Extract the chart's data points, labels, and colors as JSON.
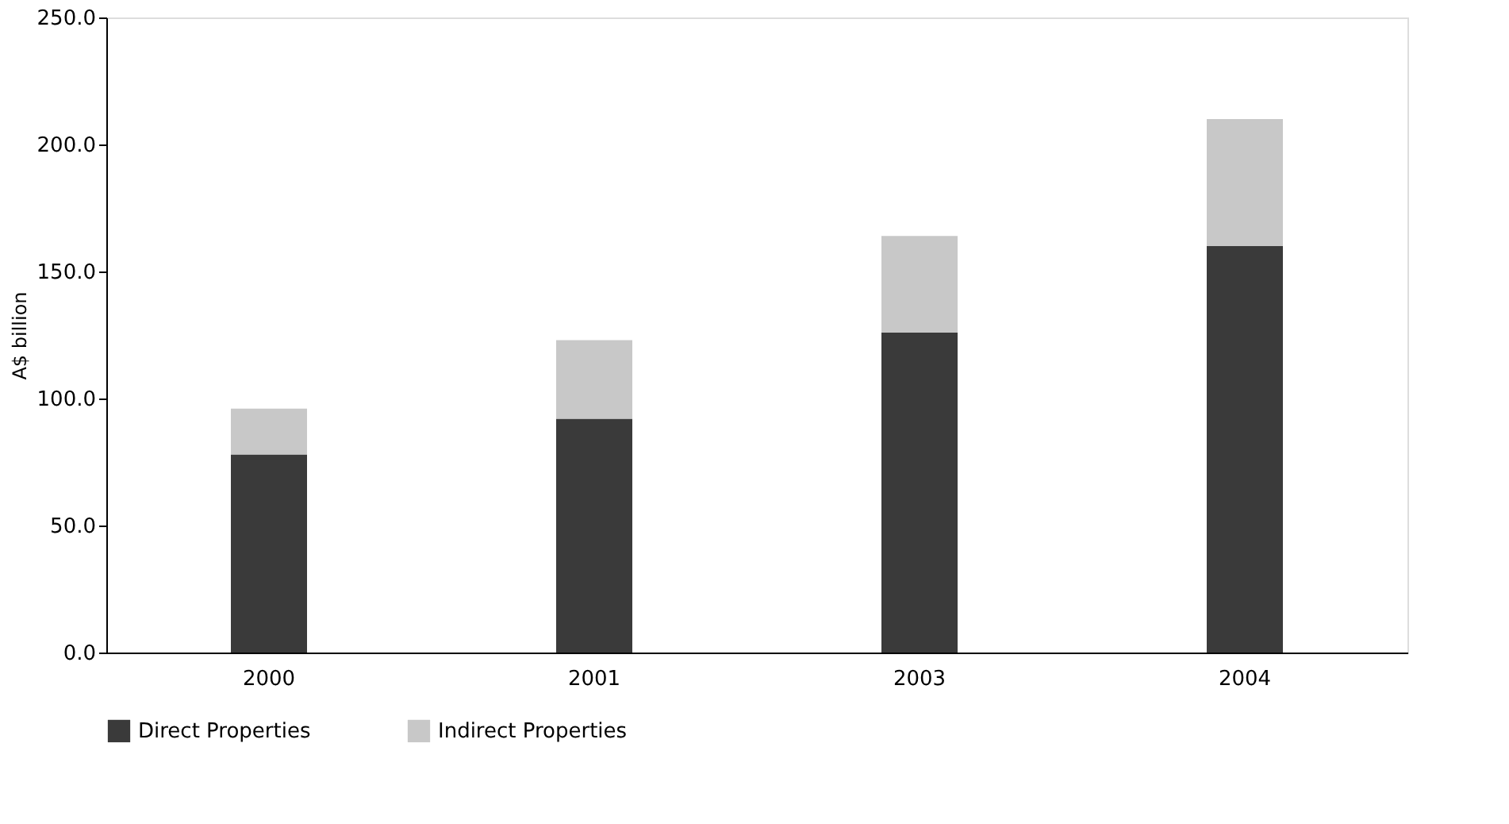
{
  "chart_data": {
    "type": "bar",
    "stacked": true,
    "ylabel": "A$ billion",
    "categories": [
      "2000",
      "2001",
      "2003",
      "2004"
    ],
    "series": [
      {
        "name": "Direct Properties",
        "color": "#3a3a3a",
        "values": [
          78,
          92,
          126,
          160
        ]
      },
      {
        "name": "Indirect Properties",
        "color": "#c8c8c8",
        "values": [
          18,
          31,
          38,
          50
        ]
      }
    ],
    "ylim": [
      0,
      250
    ],
    "yticks": [
      {
        "value": 0,
        "label": "0.0"
      },
      {
        "value": 50,
        "label": "50.0"
      },
      {
        "value": 100,
        "label": "100.0"
      },
      {
        "value": 150,
        "label": "150.0"
      },
      {
        "value": 200,
        "label": "200.0"
      },
      {
        "value": 250,
        "label": "250.0"
      }
    ],
    "grid": false,
    "legend": "bottom"
  }
}
